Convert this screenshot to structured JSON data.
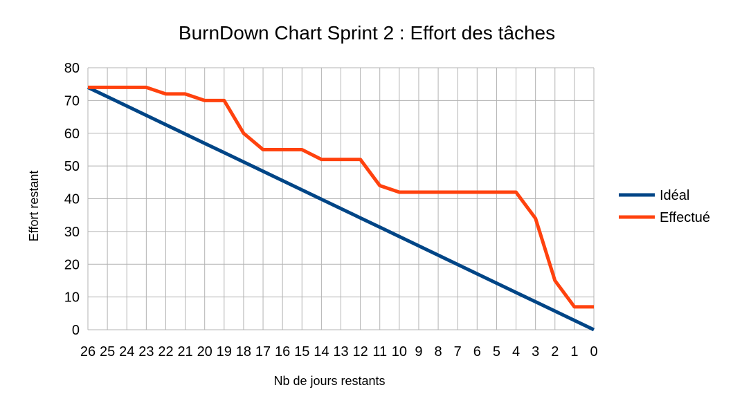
{
  "chart_data": {
    "type": "line",
    "title": "BurnDown Chart Sprint 2 : Effort des tâches",
    "xlabel": "Nb de jours restants",
    "ylabel": "Effort restant",
    "categories": [
      "26",
      "25",
      "24",
      "23",
      "22",
      "21",
      "20",
      "19",
      "18",
      "17",
      "16",
      "15",
      "14",
      "13",
      "12",
      "11",
      "10",
      "9",
      "8",
      "7",
      "6",
      "5",
      "4",
      "3",
      "2",
      "1",
      "0"
    ],
    "ylim": [
      0,
      80
    ],
    "yticks": [
      0,
      10,
      20,
      30,
      40,
      50,
      60,
      70,
      80
    ],
    "grid": true,
    "legend_position": "right",
    "series": [
      {
        "name": "Idéal",
        "color": "#004586",
        "values": [
          74,
          71.15,
          68.31,
          65.46,
          62.62,
          59.77,
          56.92,
          54.08,
          51.23,
          48.38,
          45.54,
          42.69,
          39.85,
          37,
          34.15,
          31.31,
          28.46,
          25.62,
          22.77,
          19.92,
          17.08,
          14.23,
          11.38,
          8.54,
          5.69,
          2.85,
          0
        ]
      },
      {
        "name": "Effectué",
        "color": "#ff420e",
        "values": [
          74,
          74,
          74,
          74,
          72,
          72,
          70,
          70,
          60,
          55,
          55,
          55,
          52,
          52,
          52,
          44,
          42,
          42,
          42,
          42,
          42,
          42,
          42,
          34,
          15,
          7,
          7
        ]
      }
    ]
  }
}
